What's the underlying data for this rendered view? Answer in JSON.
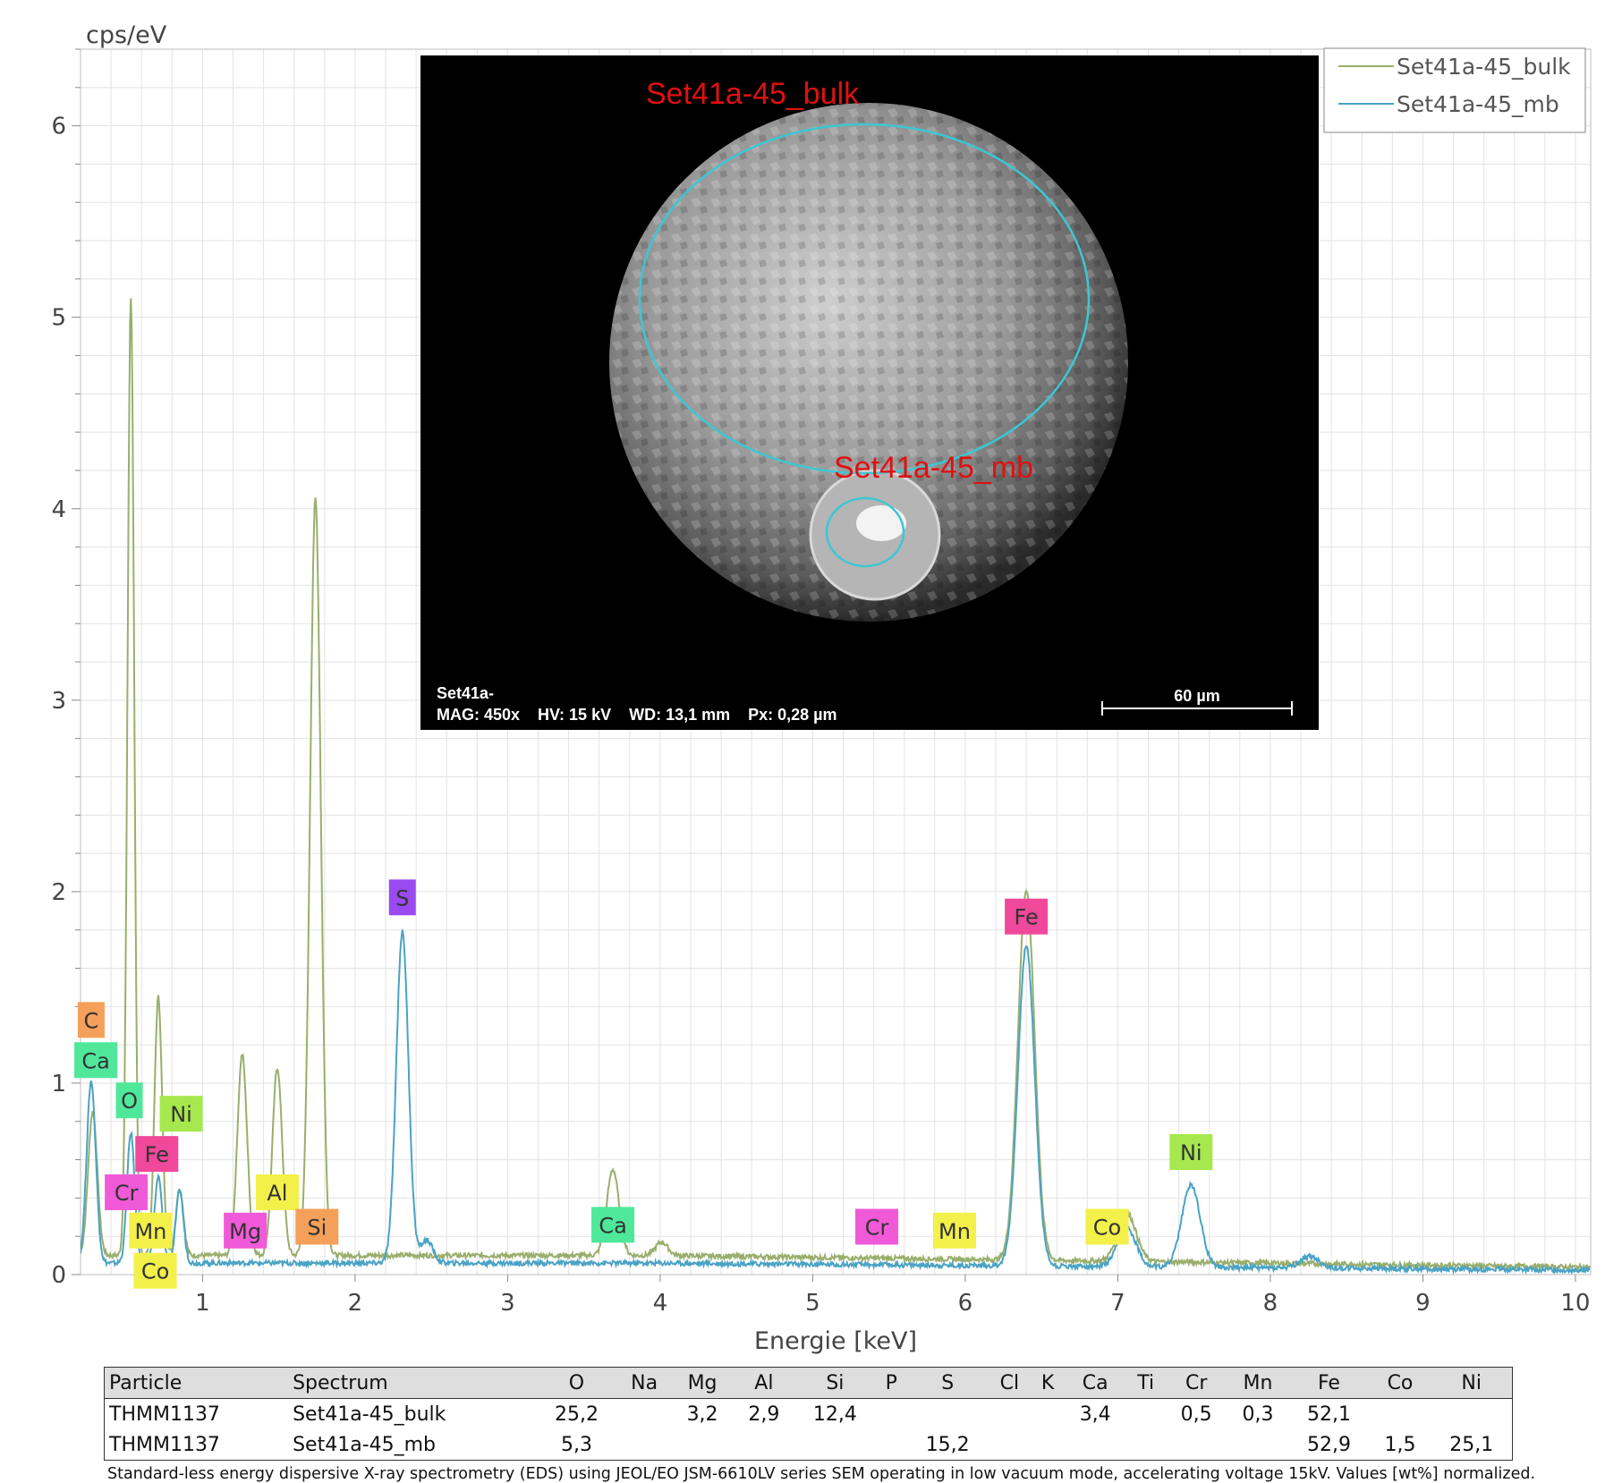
{
  "chart_data": {
    "type": "line",
    "ylabel": "cps/eV",
    "xlabel": "Energie [keV]",
    "xlim": [
      0.2,
      10.1
    ],
    "ylim": [
      0,
      6.4
    ],
    "x_ticks": [
      1,
      2,
      3,
      4,
      5,
      6,
      7,
      8,
      9,
      10
    ],
    "y_ticks": [
      0,
      1,
      2,
      3,
      4,
      5,
      6
    ],
    "grid": true,
    "legend_position": "top-right",
    "series": [
      {
        "name": "Set41a-45_bulk",
        "color": "#9aae6c",
        "baseline": 0.1,
        "peaks": [
          {
            "x": 0.28,
            "y": 0.75,
            "w": 0.03
          },
          {
            "x": 0.53,
            "y": 5.0,
            "w": 0.022
          },
          {
            "x": 0.71,
            "y": 1.35,
            "w": 0.025
          },
          {
            "x": 0.85,
            "y": 0.35,
            "w": 0.025
          },
          {
            "x": 1.26,
            "y": 1.05,
            "w": 0.032
          },
          {
            "x": 1.49,
            "y": 0.98,
            "w": 0.032
          },
          {
            "x": 1.74,
            "y": 3.95,
            "w": 0.035
          },
          {
            "x": 3.69,
            "y": 0.45,
            "w": 0.04
          },
          {
            "x": 4.01,
            "y": 0.07,
            "w": 0.04
          },
          {
            "x": 6.4,
            "y": 1.93,
            "w": 0.055
          },
          {
            "x": 7.06,
            "y": 0.25,
            "w": 0.06
          }
        ]
      },
      {
        "name": "Set41a-45_mb",
        "color": "#4aa3c4",
        "baseline": 0.06,
        "peaks": [
          {
            "x": 0.27,
            "y": 0.95,
            "w": 0.03
          },
          {
            "x": 0.53,
            "y": 0.68,
            "w": 0.025
          },
          {
            "x": 0.71,
            "y": 0.45,
            "w": 0.025
          },
          {
            "x": 0.85,
            "y": 0.38,
            "w": 0.025
          },
          {
            "x": 2.31,
            "y": 1.73,
            "w": 0.04
          },
          {
            "x": 2.47,
            "y": 0.12,
            "w": 0.04
          },
          {
            "x": 6.4,
            "y": 1.67,
            "w": 0.055
          },
          {
            "x": 7.06,
            "y": 0.2,
            "w": 0.06
          },
          {
            "x": 7.48,
            "y": 0.43,
            "w": 0.06
          },
          {
            "x": 8.26,
            "y": 0.06,
            "w": 0.06
          }
        ]
      }
    ],
    "element_labels": [
      {
        "text": "C",
        "x": 0.27,
        "y": 1.33,
        "color": "#f5a05a"
      },
      {
        "text": "Ca",
        "x": 0.3,
        "y": 1.12,
        "color": "#4fe89a"
      },
      {
        "text": "O",
        "x": 0.52,
        "y": 0.91,
        "color": "#4fe89a"
      },
      {
        "text": "Ni",
        "x": 0.86,
        "y": 0.84,
        "color": "#a6e84e"
      },
      {
        "text": "Fe",
        "x": 0.7,
        "y": 0.63,
        "color": "#f0489a"
      },
      {
        "text": "Cr",
        "x": 0.5,
        "y": 0.43,
        "color": "#f05ad8"
      },
      {
        "text": "Al",
        "x": 1.49,
        "y": 0.43,
        "color": "#f3f04a"
      },
      {
        "text": "Mn",
        "x": 0.66,
        "y": 0.23,
        "color": "#f3f04a"
      },
      {
        "text": "Mg",
        "x": 1.28,
        "y": 0.23,
        "color": "#f05ad8"
      },
      {
        "text": "Si",
        "x": 1.75,
        "y": 0.25,
        "color": "#f5a05a"
      },
      {
        "text": "Co",
        "x": 0.69,
        "y": 0.02,
        "color": "#f3f04a"
      },
      {
        "text": "S",
        "x": 2.31,
        "y": 1.97,
        "color": "#9a4af0"
      },
      {
        "text": "Ca",
        "x": 3.69,
        "y": 0.26,
        "color": "#4fe89a"
      },
      {
        "text": "Cr",
        "x": 5.42,
        "y": 0.25,
        "color": "#f05ad8"
      },
      {
        "text": "Mn",
        "x": 5.93,
        "y": 0.23,
        "color": "#f3f04a"
      },
      {
        "text": "Co",
        "x": 6.93,
        "y": 0.25,
        "color": "#f3f04a"
      },
      {
        "text": "Fe",
        "x": 6.4,
        "y": 1.87,
        "color": "#f0489a"
      },
      {
        "text": "Ni",
        "x": 7.48,
        "y": 0.64,
        "color": "#a6e84e"
      }
    ]
  },
  "sem_image": {
    "annotation_bulk": "Set41a-45_bulk",
    "annotation_mb": "Set41a-45_mb",
    "info_line1": "Set41a-",
    "info_line2": "MAG: 450x    HV: 15 kV    WD: 13,1 mm    Px: 0,28 µm",
    "scale_label": "60 µm"
  },
  "table": {
    "headers": [
      "Particle",
      "Spectrum",
      "O",
      "Na",
      "Mg",
      "Al",
      "Si",
      "P",
      "S",
      "Cl",
      "K",
      "Ca",
      "Ti",
      "Cr",
      "Mn",
      "Fe",
      "Co",
      "Ni"
    ],
    "rows": [
      [
        "THMM1137",
        "Set41a-45_bulk",
        "25,2",
        "",
        "3,2",
        "2,9",
        "12,4",
        "",
        "",
        "",
        "",
        "3,4",
        "",
        "0,5",
        "0,3",
        "52,1",
        "",
        ""
      ],
      [
        "THMM1137",
        "Set41a-45_mb",
        "5,3",
        "",
        "",
        "",
        "",
        "",
        "15,2",
        "",
        "",
        "",
        "",
        "",
        "",
        "52,9",
        "1,5",
        "25,1"
      ]
    ]
  },
  "caption": "Standard-less energy dispersive X-ray spectrometry (EDS) using JEOL/EO JSM-6610LV series SEM operating in low vacuum mode, accelerating voltage 15kV. Values [wt%] normalized."
}
